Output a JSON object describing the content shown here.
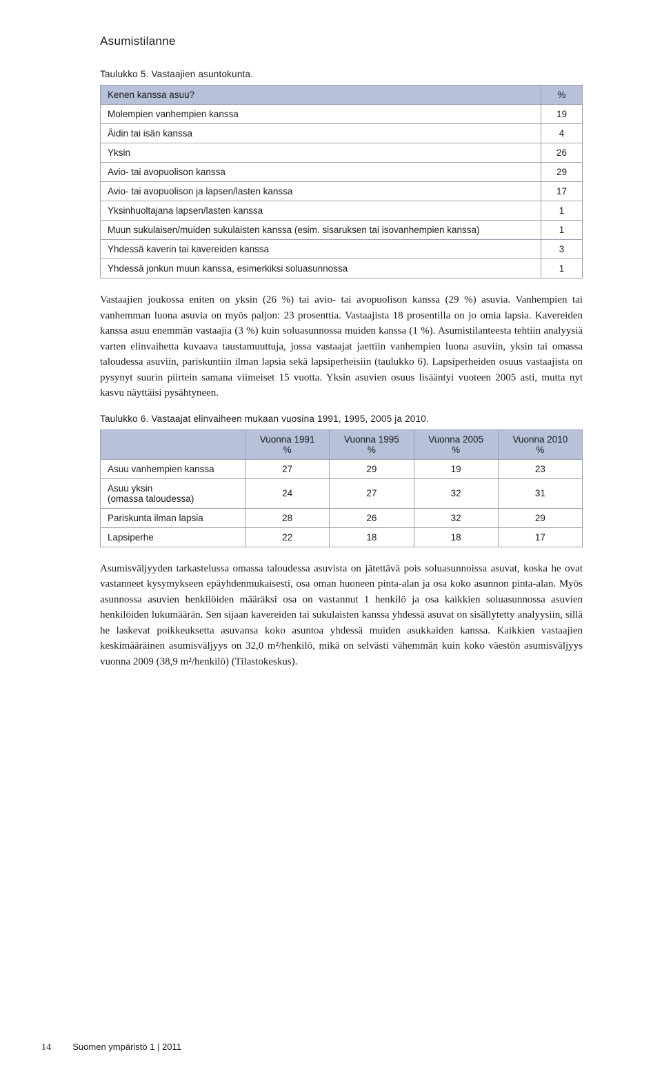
{
  "heading": "Asumistilanne",
  "table1": {
    "caption": "Taulukko 5. Vastaajien asuntokunta.",
    "header": {
      "q": "Kenen kanssa asuu?",
      "pct": "%"
    },
    "header_bg": "#b8c1da",
    "border_color": "#9aa0b0",
    "rows": [
      {
        "label": "Molempien vanhempien kanssa",
        "value": "19"
      },
      {
        "label": "Äidin tai isän kanssa",
        "value": "4"
      },
      {
        "label": "Yksin",
        "value": "26"
      },
      {
        "label": "Avio- tai avopuolison kanssa",
        "value": "29"
      },
      {
        "label": "Avio- tai avopuolison ja lapsen/lasten kanssa",
        "value": "17"
      },
      {
        "label": "Yksinhuoltajana lapsen/lasten kanssa",
        "value": "1"
      },
      {
        "label": "Muun sukulaisen/muiden sukulaisten kanssa (esim. sisaruksen tai isovanhempien kanssa)",
        "value": "1"
      },
      {
        "label": "Yhdessä kaverin tai kavereiden kanssa",
        "value": "3"
      },
      {
        "label": "Yhdessä jonkun muun kanssa, esimerkiksi soluasunnossa",
        "value": "1"
      }
    ]
  },
  "para1": "Vastaajien joukossa eniten on yksin (26 %) tai avio- tai avopuolison kanssa (29 %) asuvia. Vanhempien tai vanhemman luona asuvia on myös paljon: 23 prosenttia. Vastaajista 18 prosentilla on jo omia lapsia. Kavereiden kanssa asuu enemmän vastaajia (3 %) kuin soluasunnossa muiden kanssa (1 %). Asumistilanteesta tehtiin analyysiä varten elinvaihetta kuvaava taustamuuttuja, jossa vastaajat jaettiin vanhempien luona asuviin, yksin tai omassa taloudessa asuviin, pariskuntiin ilman lapsia sekä lapsiperheisiin (taulukko 6). Lapsiperheiden osuus vastaajista on pysynyt suurin piirtein samana viimeiset 15 vuotta. Yksin asuvien osuus lisääntyi vuoteen 2005 asti, mutta nyt kasvu näyttäisi pysähtyneen.",
  "table2": {
    "caption": "Taulukko 6. Vastaajat elinvaiheen mukaan vuosina 1991, 1995, 2005 ja 2010.",
    "header_bg": "#b8c1da",
    "border_color": "#9aa0b0",
    "columns": [
      "",
      "Vuonna 1991\n%",
      "Vuonna 1995\n%",
      "Vuonna 2005\n%",
      "Vuonna 2010\n%"
    ],
    "rows": [
      {
        "label": "Asuu vanhempien kanssa",
        "v": [
          "27",
          "29",
          "19",
          "23"
        ]
      },
      {
        "label": "Asuu yksin\n(omassa taloudessa)",
        "v": [
          "24",
          "27",
          "32",
          "31"
        ]
      },
      {
        "label": "Pariskunta ilman lapsia",
        "v": [
          "28",
          "26",
          "32",
          "29"
        ]
      },
      {
        "label": "Lapsiperhe",
        "v": [
          "22",
          "18",
          "18",
          "17"
        ]
      }
    ]
  },
  "para2": "Asumisväljyyden tarkastelussa omassa taloudessa asuvista on jätettävä pois soluasunnoissa asuvat, koska he ovat vastanneet kysymykseen epäyhdenmukaisesti, osa oman huoneen pinta-alan ja osa koko asunnon pinta-alan. Myös asunnossa asuvien henkilöiden määräksi osa on vastannut 1 henkilö ja osa kaikkien soluasunnossa asuvien henkilöiden lukumäärän. Sen sijaan kavereiden tai sukulaisten kanssa yhdessä asuvat on sisällytetty analyysiin, sillä he laskevat poikkeuksetta asuvansa koko asuntoa yhdessä muiden asukkaiden kanssa. Kaikkien vastaajien keskimääräinen asumisväljyys on 32,0 m²/henkilö, mikä on selvästi vähemmän kuin koko väestön asumisväljyys vuonna 2009 (38,9 m²/henkilö) (Tilastokeskus).",
  "footer": {
    "page": "14",
    "pub": "Suomen ympäristö  1 | 2011"
  },
  "style": {
    "page_bg": "#ffffff",
    "text_color": "#1a1a1a",
    "body_font_size_pt": 11,
    "caption_font_size_pt": 10,
    "heading_font_size_pt": 13,
    "table_border_color": "#9aa0b0"
  }
}
